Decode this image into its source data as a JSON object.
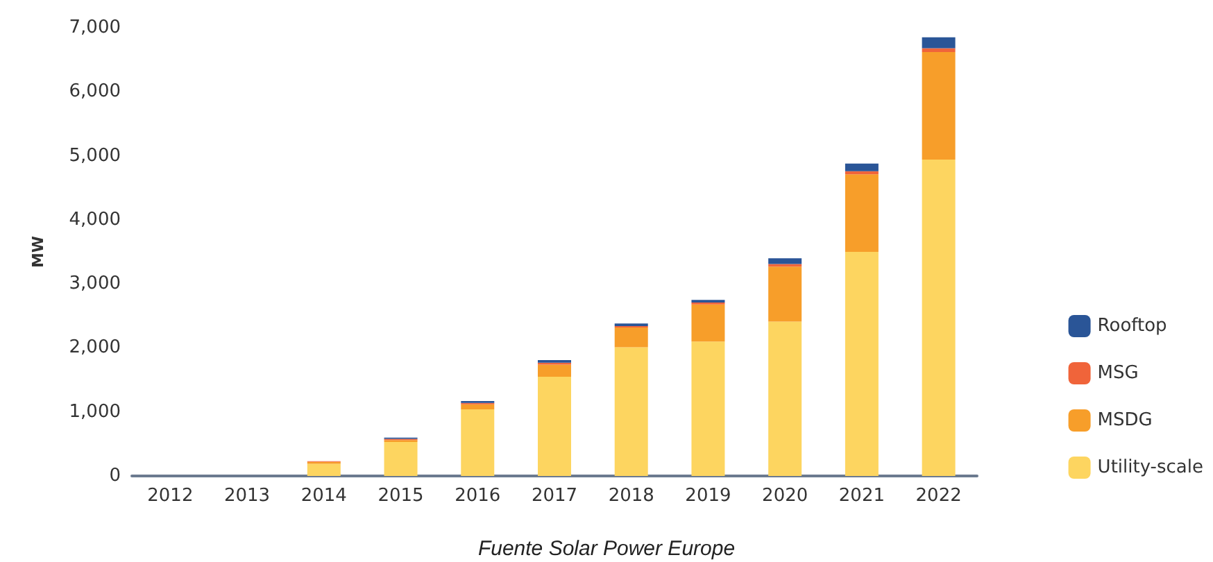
{
  "chart_data": {
    "type": "bar",
    "stacked": true,
    "ylabel": "MW",
    "categories": [
      "2012",
      "2013",
      "2014",
      "2015",
      "2016",
      "2017",
      "2018",
      "2019",
      "2020",
      "2021",
      "2022"
    ],
    "series": [
      {
        "name": "Utility-scale",
        "color": "#fdd560",
        "values": [
          0,
          0,
          190,
          530,
          1040,
          1550,
          2010,
          2100,
          2410,
          3500,
          4940
        ]
      },
      {
        "name": "MSDG",
        "color": "#f79e2a",
        "values": [
          0,
          0,
          30,
          30,
          80,
          190,
          310,
          580,
          860,
          1210,
          1680
        ]
      },
      {
        "name": "MSG",
        "color": "#f0643a",
        "values": [
          0,
          0,
          10,
          20,
          20,
          30,
          20,
          30,
          40,
          50,
          60
        ]
      },
      {
        "name": "Rooftop",
        "color": "#2a5597",
        "values": [
          0,
          0,
          0,
          20,
          30,
          40,
          40,
          40,
          90,
          120,
          170
        ]
      }
    ],
    "ylim": [
      0,
      7000
    ],
    "yticks": [
      0,
      {
        "value": 1000,
        "label": "1,000"
      },
      {
        "value": 2000,
        "label": "2,000"
      },
      {
        "value": 3000,
        "label": "3,000"
      },
      {
        "value": 4000,
        "label": "4,000"
      },
      {
        "value": 5000,
        "label": "5,000"
      },
      {
        "value": 6000,
        "label": "6,000"
      },
      {
        "value": 7000,
        "label": "7,000"
      }
    ],
    "grid": false,
    "legend": "right",
    "annotations": [
      "Fuente Solar Power Europe"
    ]
  }
}
